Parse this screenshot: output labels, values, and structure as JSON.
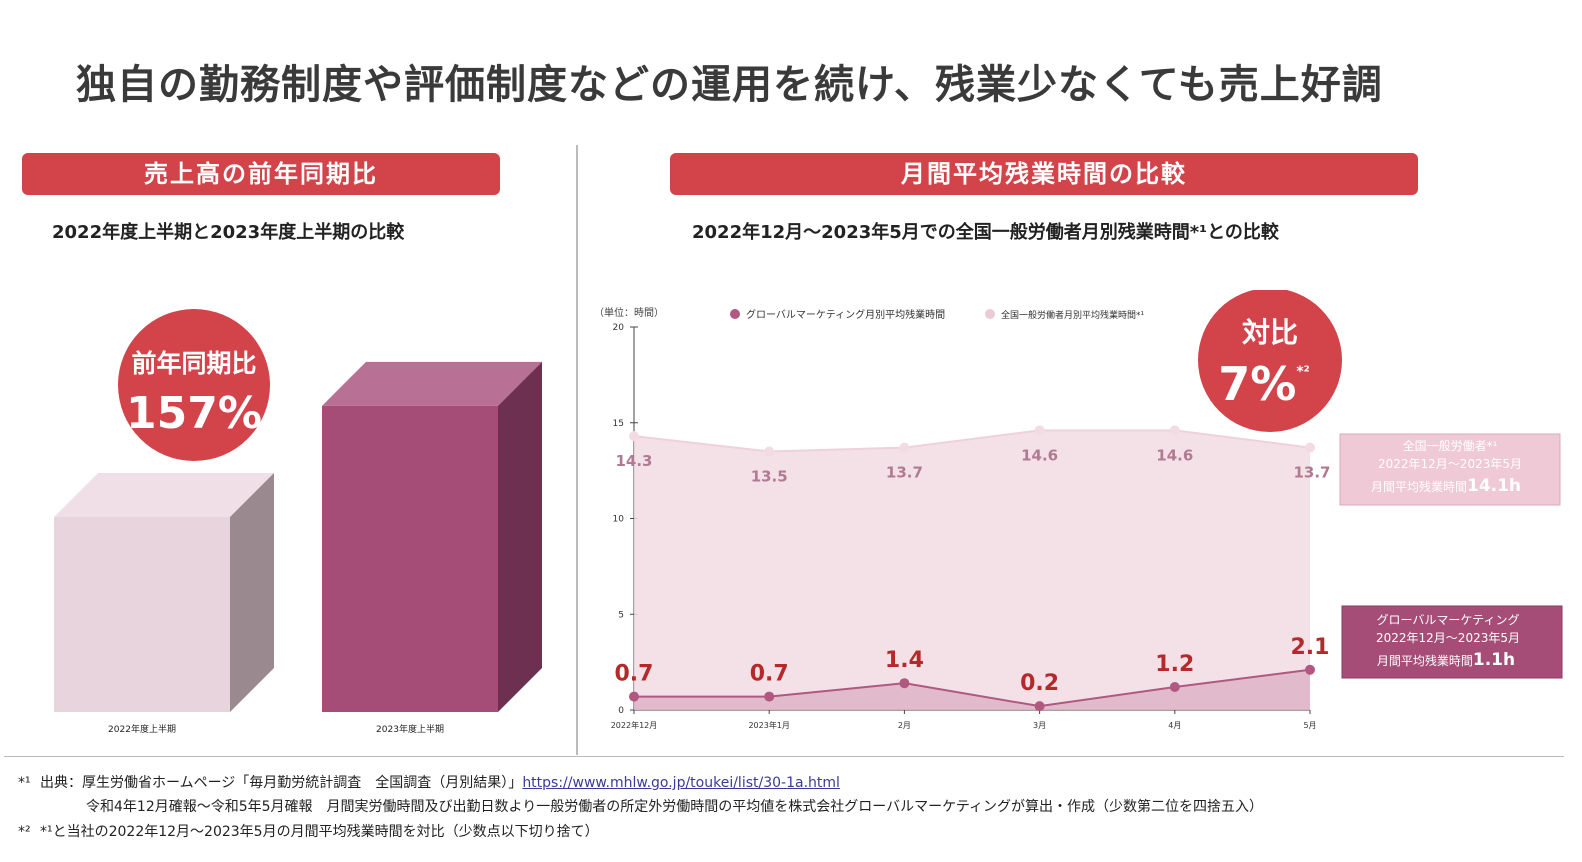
{
  "title": "独自の勤務制度や評価制度などの運用を続け、残業少なくても売上好調",
  "left_panel": {
    "banner": "売上高の前年同期比",
    "subtitle": "2022年度上半期と2023年度上半期の比較",
    "badge_line1": "前年同期比",
    "badge_line2": "157%"
  },
  "right_panel": {
    "banner": "月間平均残業時間の比較",
    "subtitle": "2022年12月～2023年5月での全国一般労働者月別残業時間*¹との比較",
    "badge_line1": "対比",
    "badge_value": "7%",
    "badge_sup": "*²",
    "unit_label": "（単位：時間）",
    "national_box": {
      "line1": "全国一般労働者*¹",
      "line2": "2022年12月～2023年5月",
      "line3_prefix": "月間平均残業時間",
      "line3_value": "14.1h"
    },
    "company_box": {
      "line1": "グローバルマーケティング",
      "line2": "2022年12月～2023年5月",
      "line3_prefix": "月間平均残業時間",
      "line3_value": "1.1h"
    }
  },
  "chart_data": [
    {
      "type": "bar",
      "categories": [
        "2022年度上半期",
        "2023年度上半期"
      ],
      "values": [
        100,
        157
      ],
      "title": "売上高の前年同期比",
      "annotation": "前年同期比157%",
      "colors": [
        "#e8d4dc",
        "#a64d77"
      ]
    },
    {
      "type": "line",
      "title": "月間平均残業時間の比較",
      "x": [
        "2022年12月",
        "2023年1月",
        "2月",
        "3月",
        "4月",
        "5月"
      ],
      "series": [
        {
          "name": "グローバルマーケティング月別平均残業時間",
          "values": [
            0.7,
            0.7,
            1.4,
            0.2,
            1.2,
            2.1
          ],
          "labels": [
            "0.7",
            "0.7",
            "1.4",
            "0.2",
            "1.2",
            "2.1"
          ],
          "color": "#b05880"
        },
        {
          "name": "全国一般労働者月別平均残業時間*¹",
          "values": [
            14.3,
            13.5,
            13.7,
            14.6,
            14.6,
            13.7
          ],
          "labels": [
            "14.3",
            "13.5",
            "13.7",
            "14.6",
            "14.6",
            "13.7"
          ],
          "color": "#f0d8e0"
        }
      ],
      "yticks": [
        "0",
        "5",
        "10",
        "15",
        "20"
      ],
      "ylim": [
        0,
        20
      ],
      "legend_position": "top"
    }
  ],
  "notes": {
    "note1_mark": "*¹",
    "note1_text": "出典：厚生労働省ホームページ「毎月勤労統計調査　全国調査（月別結果）」",
    "note1_link": "https://www.mhlw.go.jp/toukei/list/30-1a.html",
    "note2_text": "令和4年12月確報～令和5年5月確報　月間実労働時間及び出勤日数より一般労働者の所定外労働時間の平均値を株式会社グローバルマーケティングが算出・作成（少数第二位を四捨五入）",
    "note3_mark": "*²",
    "note3_text": "*¹と当社の2022年12月～2023年5月の月間平均残業時間を対比（少数点以下切り捨て）"
  }
}
